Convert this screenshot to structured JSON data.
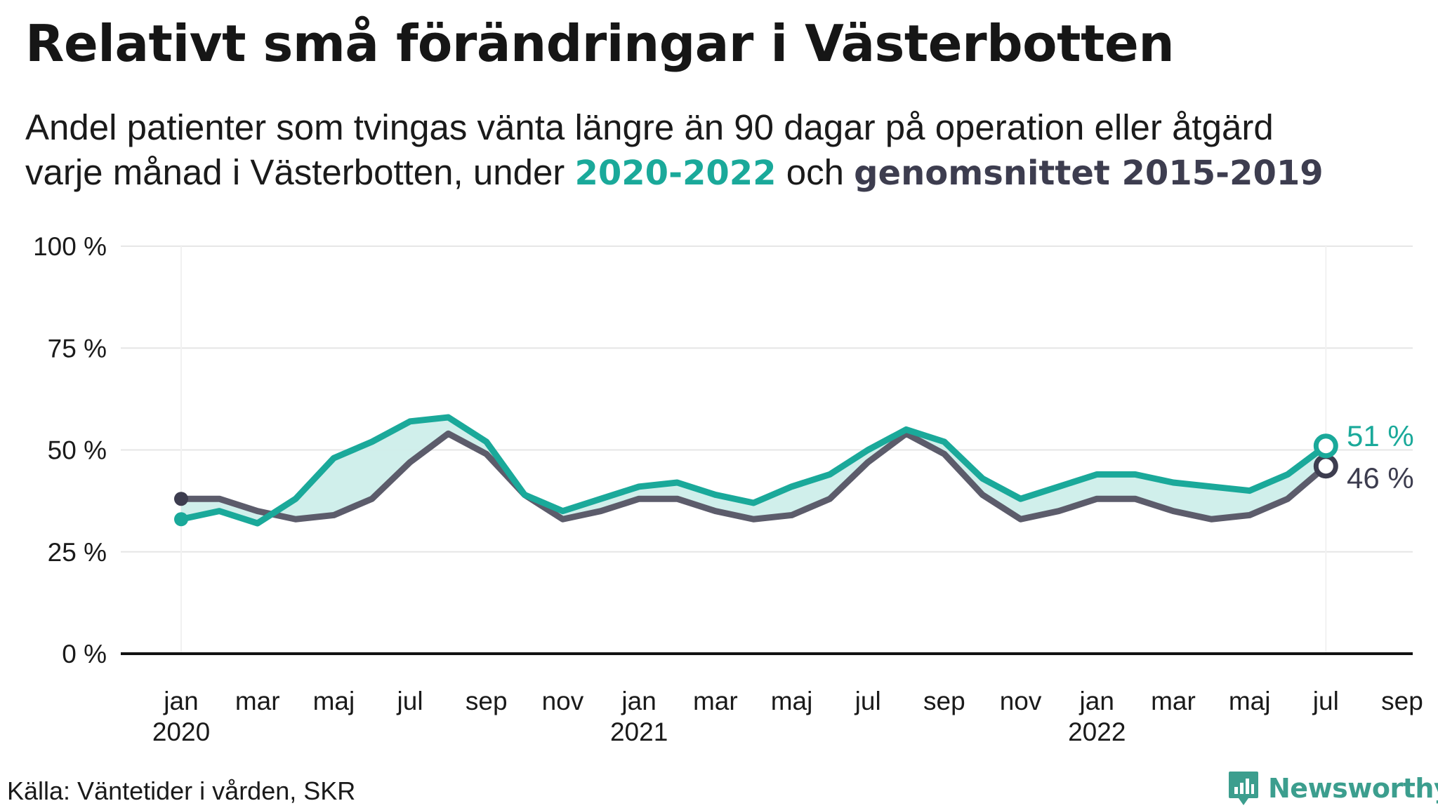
{
  "title": "Relativt små förändringar i Västerbotten",
  "subtitle": {
    "line1": "Andel patienter  som tvingas  vänta längre  än 90 dagar  på operation  eller åtgärd",
    "line2_start": "varje månad  i Västerbotten,  under ",
    "highlight_a": "2020-2022",
    "middle": " och ",
    "highlight_b": "genomsnittet 2015-2019"
  },
  "source": "Källa: Väntetider i vården, SKR",
  "brand": "Newsworthy",
  "colors": {
    "current": "#1aa99a",
    "average": "#5c5c6b",
    "area": "#cdeeea",
    "grid": "#e6e6e6",
    "axis": "#111111",
    "text": "#1a1a1a"
  },
  "chart_data": {
    "type": "line",
    "x": [
      "2020-01",
      "2020-02",
      "2020-03",
      "2020-04",
      "2020-05",
      "2020-06",
      "2020-07",
      "2020-08",
      "2020-09",
      "2020-10",
      "2020-11",
      "2020-12",
      "2021-01",
      "2021-02",
      "2021-03",
      "2021-04",
      "2021-05",
      "2021-06",
      "2021-07",
      "2021-08",
      "2021-09",
      "2021-10",
      "2021-11",
      "2021-12",
      "2022-01",
      "2022-02",
      "2022-03",
      "2022-04",
      "2022-05",
      "2022-06",
      "2022-07"
    ],
    "series": [
      {
        "name": "2020-2022",
        "color": "#1aa99a",
        "values": [
          33,
          35,
          32,
          38,
          48,
          52,
          57,
          58,
          52,
          39,
          35,
          38,
          41,
          42,
          39,
          37,
          41,
          44,
          50,
          55,
          52,
          43,
          38,
          41,
          44,
          44,
          42,
          41,
          40,
          44,
          51
        ]
      },
      {
        "name": "genomsnittet 2015-2019",
        "color": "#5c5c6b",
        "values": [
          38,
          38,
          35,
          33,
          34,
          38,
          47,
          54,
          49,
          39,
          33,
          35,
          38,
          38,
          35,
          33,
          34,
          38,
          47,
          54,
          49,
          39,
          33,
          35,
          38,
          38,
          35,
          33,
          34,
          38,
          46
        ]
      }
    ],
    "ylim": [
      0,
      100
    ],
    "yticks": [
      0,
      25,
      50,
      75,
      100
    ],
    "ytick_labels": [
      "0 %",
      "25 %",
      "50 %",
      "75 %",
      "100 %"
    ],
    "xlim": [
      "2020-01",
      "2022-09"
    ],
    "xticks": [
      {
        "x": "2020-01",
        "label": "jan",
        "year": "2020"
      },
      {
        "x": "2020-03",
        "label": "mar",
        "year": ""
      },
      {
        "x": "2020-05",
        "label": "maj",
        "year": ""
      },
      {
        "x": "2020-07",
        "label": "jul",
        "year": ""
      },
      {
        "x": "2020-09",
        "label": "sep",
        "year": ""
      },
      {
        "x": "2020-11",
        "label": "nov",
        "year": ""
      },
      {
        "x": "2021-01",
        "label": "jan",
        "year": "2021"
      },
      {
        "x": "2021-03",
        "label": "mar",
        "year": ""
      },
      {
        "x": "2021-05",
        "label": "maj",
        "year": ""
      },
      {
        "x": "2021-07",
        "label": "jul",
        "year": ""
      },
      {
        "x": "2021-09",
        "label": "sep",
        "year": ""
      },
      {
        "x": "2021-11",
        "label": "nov",
        "year": ""
      },
      {
        "x": "2022-01",
        "label": "jan",
        "year": "2022"
      },
      {
        "x": "2022-03",
        "label": "mar",
        "year": ""
      },
      {
        "x": "2022-05",
        "label": "maj",
        "year": ""
      },
      {
        "x": "2022-07",
        "label": "jul",
        "year": ""
      },
      {
        "x": "2022-09",
        "label": "sep",
        "year": ""
      }
    ],
    "end_labels": [
      "51 %",
      "46 %"
    ],
    "grid": true,
    "legend": "none"
  }
}
